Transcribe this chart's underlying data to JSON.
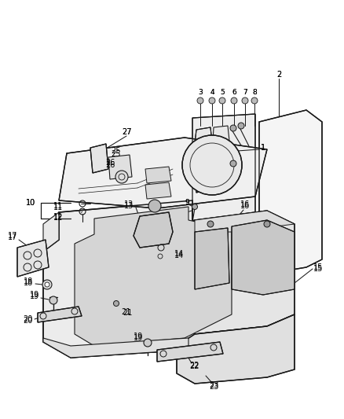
{
  "bg_color": "#ffffff",
  "line_color": "#1a1a1a",
  "fig_width": 4.38,
  "fig_height": 5.33,
  "dpi": 100,
  "label_fontsize": 7.0
}
